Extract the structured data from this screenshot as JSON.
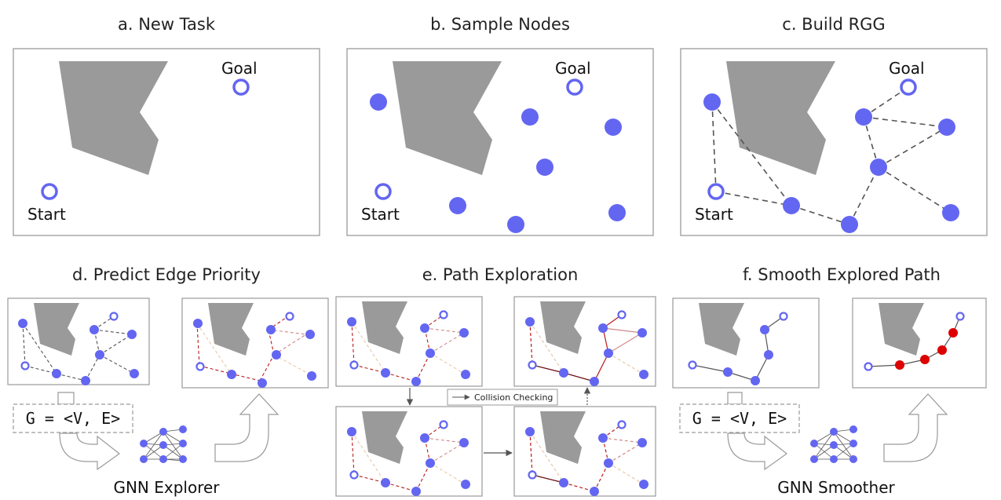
{
  "colors": {
    "node": "#6366f1",
    "obstacle": "#9a9a9a",
    "frame": "#9a9a9a",
    "edge_dark": "#555555",
    "edge_red": "#b91c1c",
    "edge_faint": "#e8c9a8",
    "smooth_node": "#dd0000"
  },
  "panels": {
    "a": {
      "title": "a. New Task",
      "goal_label": "Goal",
      "start_label": "Start"
    },
    "b": {
      "title": "b. Sample Nodes",
      "goal_label": "Goal",
      "start_label": "Start"
    },
    "c": {
      "title": "c. Build RGG",
      "goal_label": "Goal",
      "start_label": "Start"
    },
    "d": {
      "title": "d. Predict Edge Priority",
      "graph_formula": "G = <V, E>",
      "network_label": "GNN Explorer"
    },
    "e": {
      "title": "e. Path Exploration",
      "legend_label": "Collision Checking"
    },
    "f": {
      "title": "f. Smooth Explored Path",
      "graph_formula": "G = <V, E>",
      "network_label": "GNN Smoother"
    }
  }
}
